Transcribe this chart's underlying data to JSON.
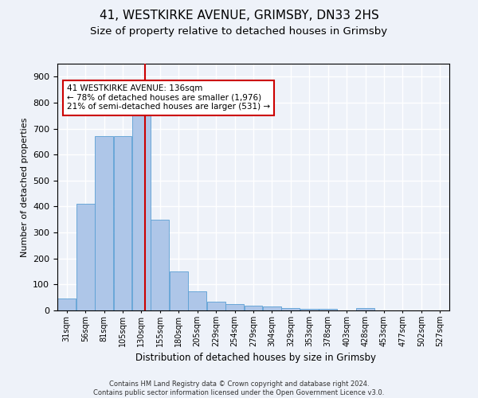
{
  "title1": "41, WESTKIRKE AVENUE, GRIMSBY, DN33 2HS",
  "title2": "Size of property relative to detached houses in Grimsby",
  "xlabel": "Distribution of detached houses by size in Grimsby",
  "ylabel": "Number of detached properties",
  "footnote1": "Contains HM Land Registry data © Crown copyright and database right 2024.",
  "footnote2": "Contains public sector information licensed under the Open Government Licence v3.0.",
  "bin_labels": [
    "31sqm",
    "56sqm",
    "81sqm",
    "105sqm",
    "130sqm",
    "155sqm",
    "180sqm",
    "205sqm",
    "229sqm",
    "254sqm",
    "279sqm",
    "304sqm",
    "329sqm",
    "353sqm",
    "378sqm",
    "403sqm",
    "428sqm",
    "453sqm",
    "477sqm",
    "502sqm",
    "527sqm"
  ],
  "bar_heights": [
    45,
    410,
    670,
    670,
    750,
    350,
    150,
    75,
    35,
    25,
    18,
    15,
    8,
    5,
    5,
    0,
    8,
    0,
    0,
    0,
    0
  ],
  "bin_edges": [
    18.5,
    43.5,
    68.5,
    93.5,
    118.5,
    143.5,
    168.5,
    193.5,
    218.5,
    243.5,
    268.5,
    293.5,
    318.5,
    343.5,
    368.5,
    393.5,
    418.5,
    443.5,
    468.5,
    493.5,
    518.5,
    543.5
  ],
  "property_size": 136,
  "annotation_line1": "41 WESTKIRKE AVENUE: 136sqm",
  "annotation_line2": "← 78% of detached houses are smaller (1,976)",
  "annotation_line3": "21% of semi-detached houses are larger (531) →",
  "bar_color": "#aec6e8",
  "bar_edge_color": "#5a9fd4",
  "line_color": "#cc0000",
  "annotation_box_color": "#ffffff",
  "annotation_box_edge": "#cc0000",
  "background_color": "#eef2f9",
  "grid_color": "#ffffff",
  "ylim": [
    0,
    950
  ],
  "title1_fontsize": 11,
  "title2_fontsize": 9.5
}
